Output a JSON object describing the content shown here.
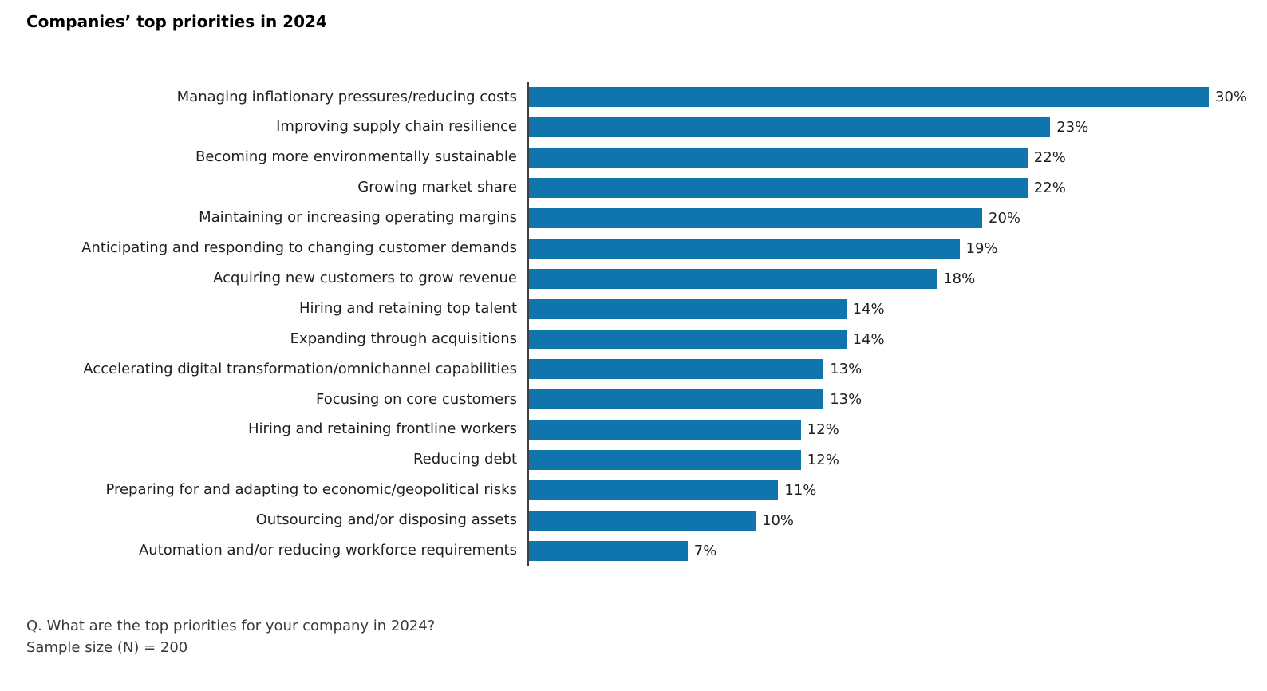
{
  "header": {
    "title": "Companies’ top priorities in 2024"
  },
  "chart_data": {
    "type": "bar",
    "orientation": "horizontal",
    "title": "Companies’ top priorities in 2024",
    "unit": "%",
    "xlim": [
      0,
      30
    ],
    "grid": false,
    "legend": false,
    "bar_color": "#0f75ac",
    "axis_color": "#3f3f3f",
    "categories": [
      "Managing inflationary pressures/reducing costs",
      "Improving supply chain resilience",
      "Becoming more environmentally sustainable",
      "Growing market share",
      "Maintaining or increasing operating margins",
      "Anticipating and responding to changing customer demands",
      "Acquiring new customers to grow revenue",
      "Hiring and retaining top talent",
      "Expanding through acquisitions",
      "Accelerating digital transformation/omnichannel capabilities",
      "Focusing on core customers",
      "Hiring and retaining frontline workers",
      "Reducing debt",
      "Preparing for and adapting to economic/geopolitical risks",
      "Outsourcing and/or disposing assets",
      "Automation and/or reducing workforce requirements"
    ],
    "values": [
      30,
      23,
      22,
      22,
      20,
      19,
      18,
      14,
      14,
      13,
      13,
      12,
      12,
      11,
      10,
      7
    ],
    "value_labels": [
      "30%",
      "23%",
      "22%",
      "22%",
      "20%",
      "19%",
      "18%",
      "14%",
      "14%",
      "13%",
      "13%",
      "12%",
      "12%",
      "11%",
      "10%",
      "7%"
    ]
  },
  "footer": {
    "question": "Q. What are the top priorities for your company in 2024?",
    "sample_size": "Sample size (N) = 200"
  }
}
